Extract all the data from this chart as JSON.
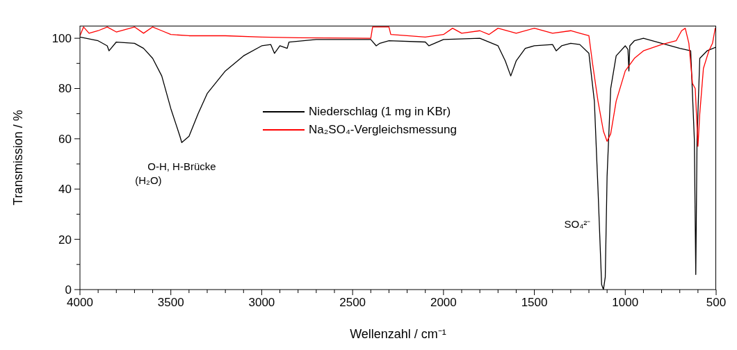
{
  "chart_data": {
    "type": "line",
    "xlabel": "Wellenzahl / cm⁻¹",
    "ylabel": "Transmission / %",
    "xlim": [
      4000,
      500
    ],
    "ylim": [
      0,
      105
    ],
    "xticks": [
      4000,
      {
        "value": 3900,
        "label": null
      },
      {
        "value": 3800,
        "label": null
      },
      {
        "value": 3700,
        "label": null
      },
      {
        "value": 3600,
        "label": null
      },
      3500,
      {
        "value": 3400,
        "label": null
      },
      {
        "value": 3300,
        "label": null
      },
      {
        "value": 3200,
        "label": null
      },
      {
        "value": 3100,
        "label": null
      },
      3000,
      {
        "value": 2900,
        "label": null
      },
      {
        "value": 2800,
        "label": null
      },
      {
        "value": 2700,
        "label": null
      },
      {
        "value": 2600,
        "label": null
      },
      2500,
      {
        "value": 2400,
        "label": null
      },
      {
        "value": 2300,
        "label": null
      },
      {
        "value": 2200,
        "label": null
      },
      {
        "value": 2100,
        "label": null
      },
      2000,
      {
        "value": 1900,
        "label": null
      },
      {
        "value": 1800,
        "label": null
      },
      {
        "value": 1700,
        "label": null
      },
      {
        "value": 1600,
        "label": null
      },
      1500,
      {
        "value": 1400,
        "label": null
      },
      {
        "value": 1300,
        "label": null
      },
      {
        "value": 1200,
        "label": null
      },
      {
        "value": 1100,
        "label": null
      },
      1000,
      {
        "value": 900,
        "label": null
      },
      {
        "value": 800,
        "label": null
      },
      {
        "value": 700,
        "label": null
      },
      {
        "value": 600,
        "label": null
      },
      500
    ],
    "yticks": [
      0,
      {
        "value": 10,
        "label": null
      },
      20,
      {
        "value": 30,
        "label": null
      },
      40,
      {
        "value": 50,
        "label": null
      },
      60,
      {
        "value": 70,
        "label": null
      },
      80,
      {
        "value": 90,
        "label": null
      },
      100
    ],
    "grid": false,
    "legend": "top",
    "marker": "none",
    "line_style": "solid",
    "series": [
      {
        "name": "Niederschlag (1 mg in KBr)",
        "color": "#000000",
        "x": [
          4000,
          3900,
          3850,
          3840,
          3800,
          3700,
          3650,
          3600,
          3550,
          3500,
          3450,
          3440,
          3400,
          3350,
          3300,
          3200,
          3100,
          3000,
          2950,
          2930,
          2900,
          2860,
          2850,
          2700,
          2400,
          2370,
          2350,
          2300,
          2100,
          2080,
          2000,
          1800,
          1700,
          1660,
          1630,
          1600,
          1550,
          1500,
          1400,
          1380,
          1350,
          1300,
          1250,
          1200,
          1170,
          1150,
          1130,
          1120,
          1110,
          1100,
          1080,
          1050,
          1000,
          985,
          980,
          975,
          950,
          900,
          800,
          700,
          640,
          620,
          612,
          605,
          590,
          550,
          500
        ],
        "values": [
          100.5,
          99,
          97,
          95,
          98.5,
          98,
          96,
          92,
          85,
          72,
          61,
          58.5,
          61,
          70,
          78,
          87,
          93,
          97,
          97.5,
          94,
          97,
          96,
          98.5,
          99.5,
          99.5,
          97,
          98,
          99,
          98.5,
          97,
          99.5,
          100,
          97,
          91,
          85,
          91,
          96,
          97,
          97.5,
          95,
          97,
          98,
          97.5,
          94,
          75,
          40,
          2,
          0,
          5,
          45,
          80,
          93,
          97,
          95.5,
          87,
          97,
          99,
          100,
          98,
          96,
          95,
          60,
          6,
          60,
          92,
          95,
          96.5
        ]
      },
      {
        "name": "Na₂SO₄-Vergleichsmessung",
        "color": "#ff0000",
        "x": [
          4000,
          3980,
          3950,
          3900,
          3850,
          3800,
          3700,
          3650,
          3600,
          3550,
          3500,
          3400,
          3200,
          3000,
          2800,
          2400,
          2390,
          2300,
          2290,
          2200,
          2100,
          2000,
          1950,
          1900,
          1800,
          1750,
          1700,
          1600,
          1500,
          1400,
          1300,
          1250,
          1200,
          1180,
          1150,
          1120,
          1100,
          1080,
          1050,
          1000,
          950,
          900,
          800,
          720,
          690,
          670,
          650,
          630,
          615,
          600,
          590,
          570,
          540,
          520,
          505,
          500
        ],
        "values": [
          101,
          104.5,
          102,
          103,
          104.5,
          102.5,
          104.5,
          102,
          104.5,
          103,
          101.5,
          101,
          101,
          100.5,
          100.2,
          100,
          104.5,
          104.5,
          101.5,
          101,
          100.5,
          101.5,
          104,
          102,
          103,
          101.5,
          104,
          102,
          104,
          102,
          103,
          102,
          101,
          90,
          75,
          63,
          59,
          62,
          75,
          87,
          92,
          95,
          97.5,
          99,
          103,
          104,
          98,
          82,
          80,
          57,
          70,
          88,
          95,
          98,
          104,
          103
        ]
      }
    ],
    "annotations": [
      {
        "text": "O-H, H-Brücke\n(H₂O)",
        "x": 3440,
        "y": 58.5
      },
      {
        "text": "SO₄²⁻",
        "x": 1145,
        "y": 26
      }
    ]
  }
}
